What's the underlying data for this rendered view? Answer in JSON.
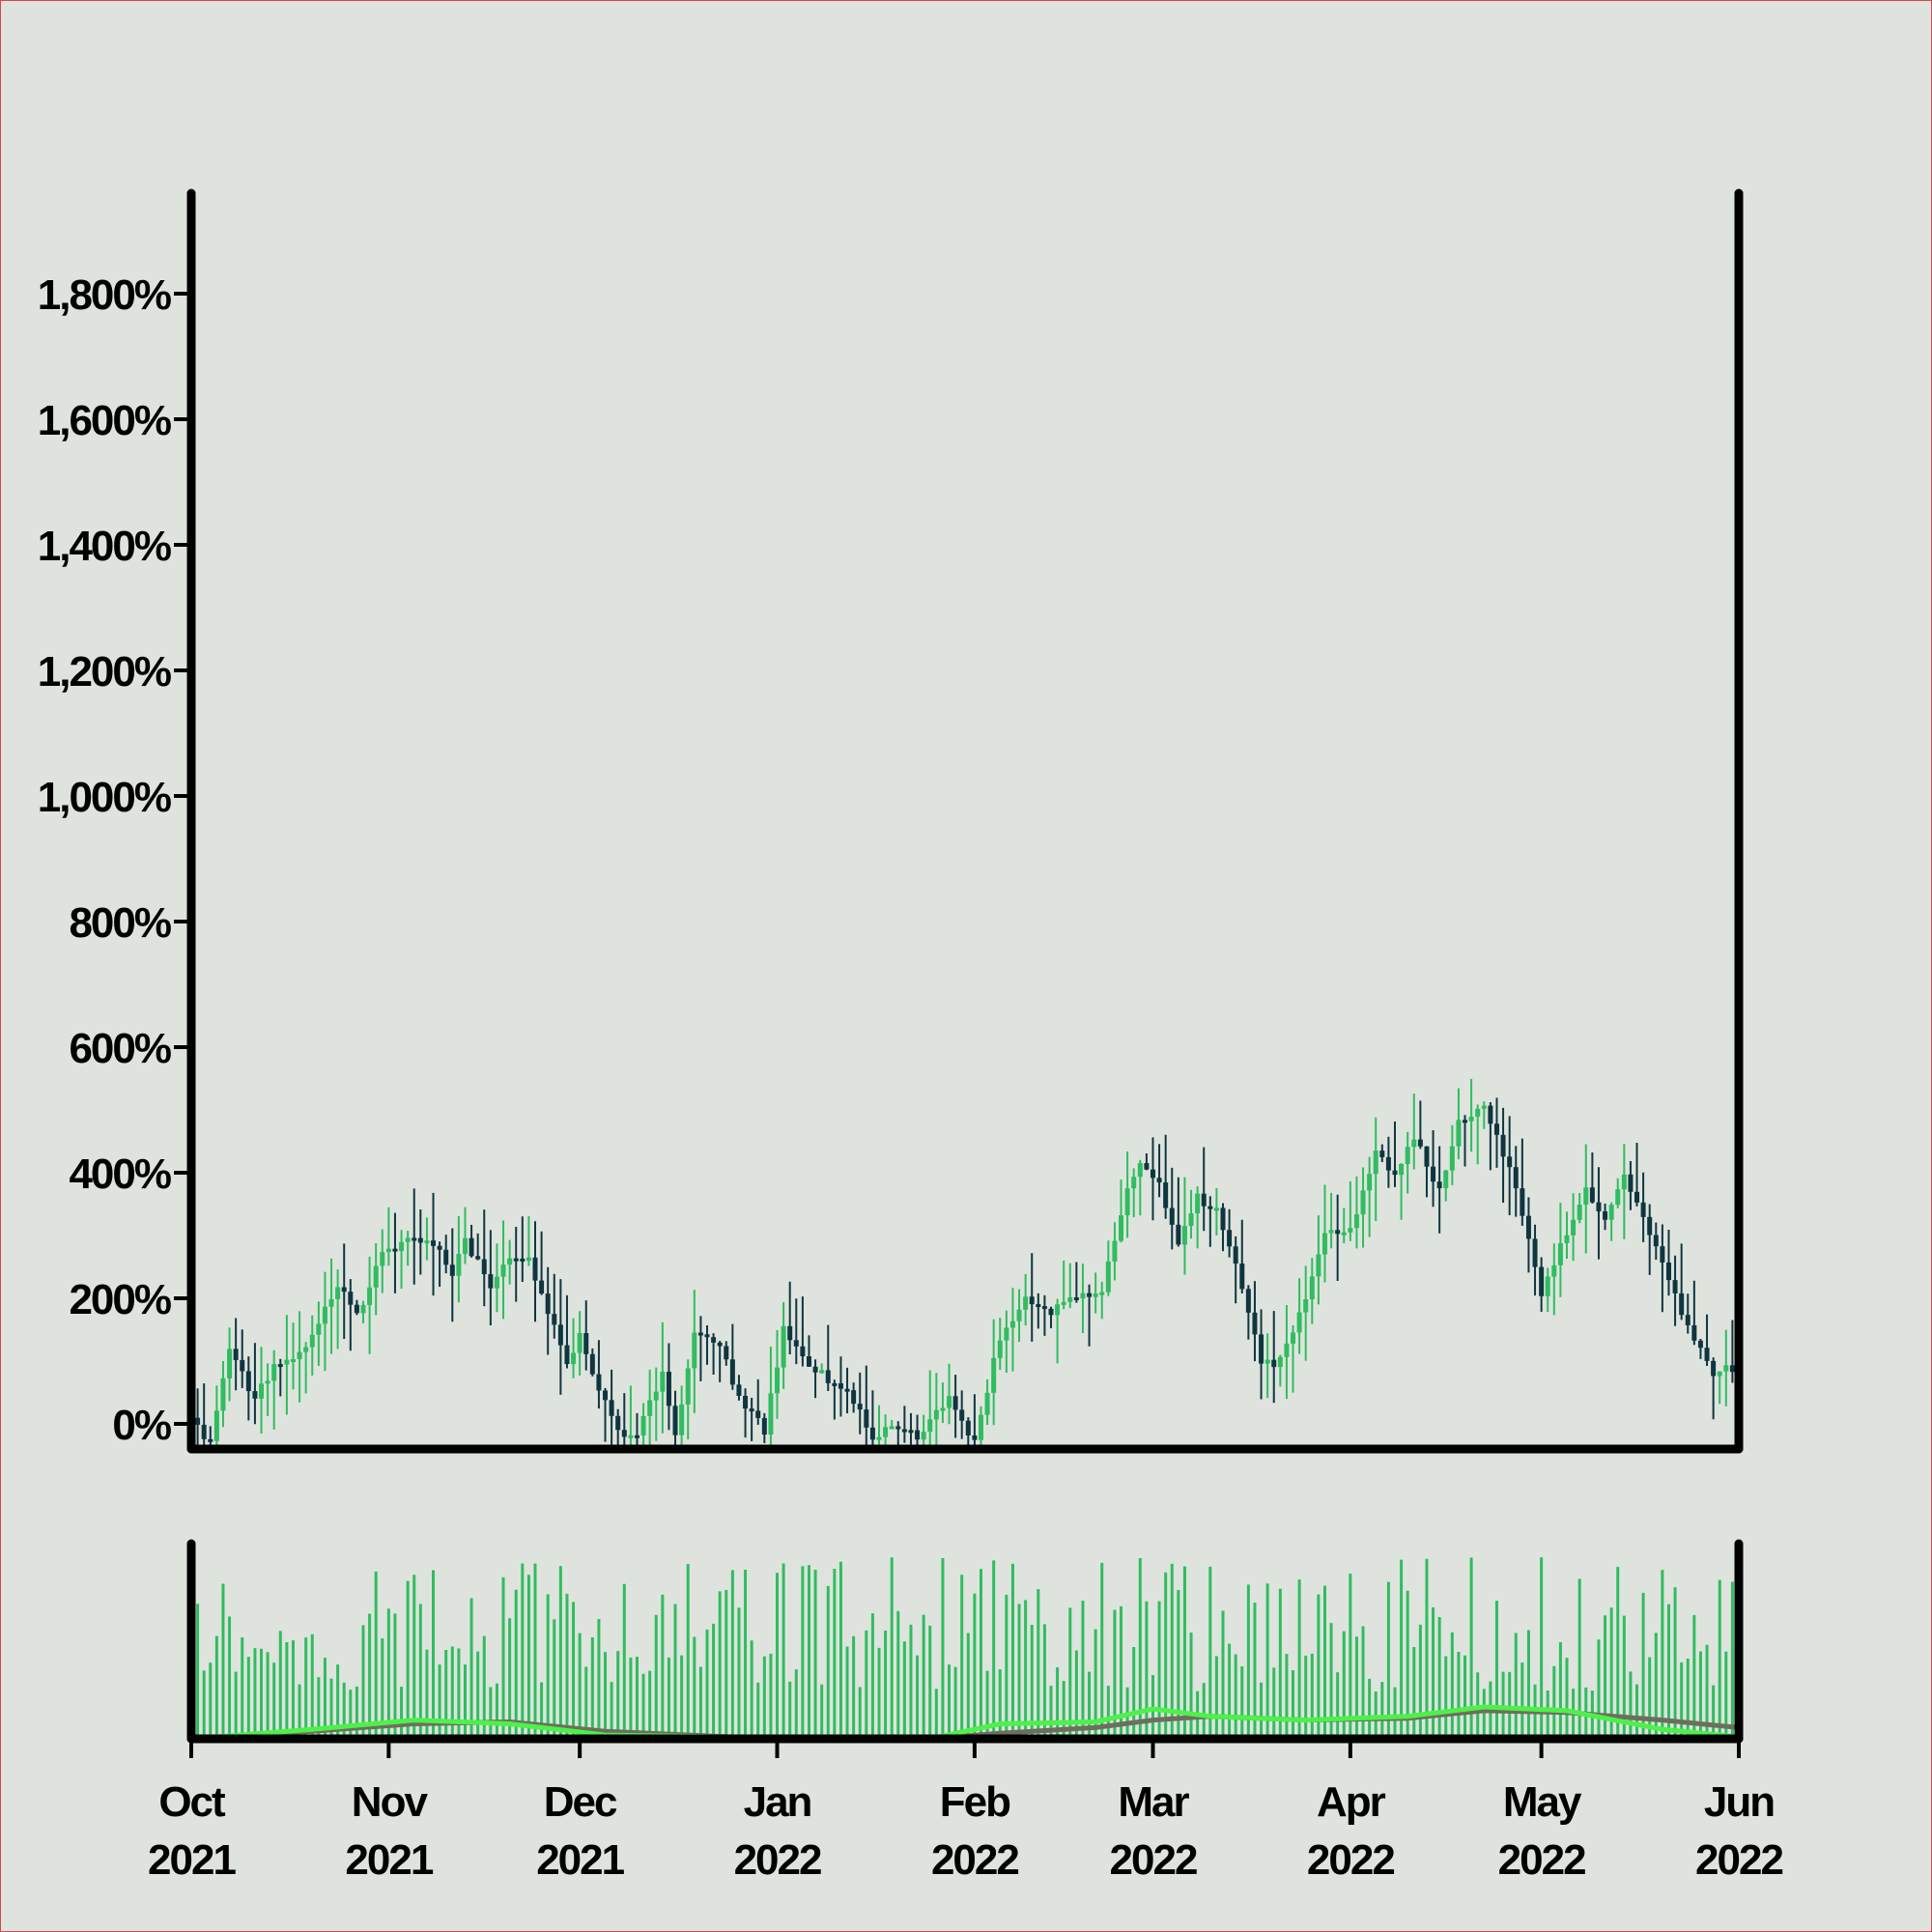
{
  "chart_data": {
    "type": "candlestick",
    "panels": [
      "price",
      "volume"
    ],
    "x_range": [
      "2021-10-01",
      "2022-06-01"
    ],
    "x_ticks": [
      {
        "date": "2021-10-01",
        "month": "Oct",
        "year": "2021"
      },
      {
        "date": "2021-11-01",
        "month": "Nov",
        "year": "2021"
      },
      {
        "date": "2021-12-01",
        "month": "Dec",
        "year": "2021"
      },
      {
        "date": "2022-01-01",
        "month": "Jan",
        "year": "2022"
      },
      {
        "date": "2022-02-01",
        "month": "Feb",
        "year": "2022"
      },
      {
        "date": "2022-03-01",
        "month": "Mar",
        "year": "2022"
      },
      {
        "date": "2022-04-01",
        "month": "Apr",
        "year": "2022"
      },
      {
        "date": "2022-05-01",
        "month": "May",
        "year": "2022"
      },
      {
        "date": "2022-06-01",
        "month": "Jun",
        "year": "2022"
      }
    ],
    "y_unit": "%",
    "y_ticks": [
      0,
      200,
      400,
      600,
      800,
      1000,
      1200,
      1400,
      1600,
      1800
    ],
    "y_tick_labels": [
      "0%",
      "200%",
      "400%",
      "600%",
      "800%",
      "1,000%",
      "1,200%",
      "1,400%",
      "1,600%",
      "1,800%"
    ],
    "ylim": [
      -40,
      1960
    ],
    "up_color": "#2fbd5f",
    "down_color": "#0f3640",
    "close_path": [
      [
        "2021-10-01",
        10
      ],
      [
        "2021-10-04",
        -30
      ],
      [
        "2021-10-07",
        120
      ],
      [
        "2021-10-11",
        40
      ],
      [
        "2021-10-14",
        90
      ],
      [
        "2021-10-18",
        110
      ],
      [
        "2021-10-24",
        220
      ],
      [
        "2021-10-27",
        170
      ],
      [
        "2021-10-31",
        270
      ],
      [
        "2021-11-04",
        290
      ],
      [
        "2021-11-08",
        290
      ],
      [
        "2021-11-11",
        240
      ],
      [
        "2021-11-13",
        290
      ],
      [
        "2021-11-17",
        220
      ],
      [
        "2021-11-20",
        260
      ],
      [
        "2021-11-23",
        260
      ],
      [
        "2021-11-26",
        180
      ],
      [
        "2021-11-29",
        100
      ],
      [
        "2021-12-01",
        140
      ],
      [
        "2021-12-03",
        80
      ],
      [
        "2021-12-07",
        -10
      ],
      [
        "2021-12-10",
        -20
      ],
      [
        "2021-12-14",
        80
      ],
      [
        "2021-12-16",
        -20
      ],
      [
        "2021-12-19",
        150
      ],
      [
        "2021-12-23",
        130
      ],
      [
        "2021-12-26",
        40
      ],
      [
        "2021-12-30",
        -10
      ],
      [
        "2022-01-02",
        150
      ],
      [
        "2022-01-05",
        100
      ],
      [
        "2022-01-09",
        70
      ],
      [
        "2022-01-12",
        60
      ],
      [
        "2022-01-16",
        -30
      ],
      [
        "2022-01-19",
        0
      ],
      [
        "2022-01-23",
        -20
      ],
      [
        "2022-01-28",
        40
      ],
      [
        "2022-02-01",
        -30
      ],
      [
        "2022-02-05",
        140
      ],
      [
        "2022-02-09",
        200
      ],
      [
        "2022-02-13",
        180
      ],
      [
        "2022-02-16",
        200
      ],
      [
        "2022-02-21",
        210
      ],
      [
        "2022-02-25",
        380
      ],
      [
        "2022-02-27",
        410
      ],
      [
        "2022-03-02",
        380
      ],
      [
        "2022-03-05",
        290
      ],
      [
        "2022-03-08",
        360
      ],
      [
        "2022-03-11",
        340
      ],
      [
        "2022-03-15",
        220
      ],
      [
        "2022-03-18",
        100
      ],
      [
        "2022-03-20",
        90
      ],
      [
        "2022-03-24",
        170
      ],
      [
        "2022-03-28",
        300
      ],
      [
        "2022-04-01",
        310
      ],
      [
        "2022-04-05",
        430
      ],
      [
        "2022-04-08",
        400
      ],
      [
        "2022-04-11",
        460
      ],
      [
        "2022-04-15",
        370
      ],
      [
        "2022-04-18",
        480
      ],
      [
        "2022-04-22",
        510
      ],
      [
        "2022-04-27",
        380
      ],
      [
        "2022-05-01",
        200
      ],
      [
        "2022-05-04",
        280
      ],
      [
        "2022-05-08",
        370
      ],
      [
        "2022-05-11",
        330
      ],
      [
        "2022-05-14",
        390
      ],
      [
        "2022-05-18",
        300
      ],
      [
        "2022-05-22",
        200
      ],
      [
        "2022-05-25",
        140
      ],
      [
        "2022-05-28",
        80
      ],
      [
        "2022-05-31",
        90
      ],
      [
        "2022-06-01",
        0
      ]
    ],
    "volume": {
      "bar_color": "#2fbd5f",
      "ma_fast_color": "#4ef04a",
      "ma_slow_color": "#6e6e5e",
      "ma_fast": [
        [
          "2021-10-01",
          0.0
        ],
        [
          "2021-10-20",
          0.05
        ],
        [
          "2021-11-05",
          0.1
        ],
        [
          "2021-11-20",
          0.08
        ],
        [
          "2021-12-05",
          0.02
        ],
        [
          "2021-12-25",
          0.01
        ],
        [
          "2022-01-10",
          0.0
        ],
        [
          "2022-01-25",
          0.0
        ],
        [
          "2022-02-05",
          0.08
        ],
        [
          "2022-02-20",
          0.09
        ],
        [
          "2022-03-01",
          0.16
        ],
        [
          "2022-03-10",
          0.12
        ],
        [
          "2022-03-25",
          0.1
        ],
        [
          "2022-04-10",
          0.12
        ],
        [
          "2022-04-22",
          0.17
        ],
        [
          "2022-05-05",
          0.15
        ],
        [
          "2022-05-20",
          0.05
        ],
        [
          "2022-06-01",
          0.01
        ]
      ],
      "ma_slow": [
        [
          "2021-10-01",
          0.0
        ],
        [
          "2021-10-20",
          0.04
        ],
        [
          "2021-11-05",
          0.08
        ],
        [
          "2021-11-20",
          0.09
        ],
        [
          "2021-12-05",
          0.04
        ],
        [
          "2021-12-25",
          0.01
        ],
        [
          "2022-01-10",
          0.01
        ],
        [
          "2022-01-25",
          0.0
        ],
        [
          "2022-02-05",
          0.03
        ],
        [
          "2022-02-20",
          0.06
        ],
        [
          "2022-03-01",
          0.1
        ],
        [
          "2022-03-10",
          0.12
        ],
        [
          "2022-03-25",
          0.1
        ],
        [
          "2022-04-10",
          0.11
        ],
        [
          "2022-04-22",
          0.15
        ],
        [
          "2022-05-05",
          0.14
        ],
        [
          "2022-05-20",
          0.1
        ],
        [
          "2022-06-01",
          0.06
        ]
      ]
    }
  }
}
